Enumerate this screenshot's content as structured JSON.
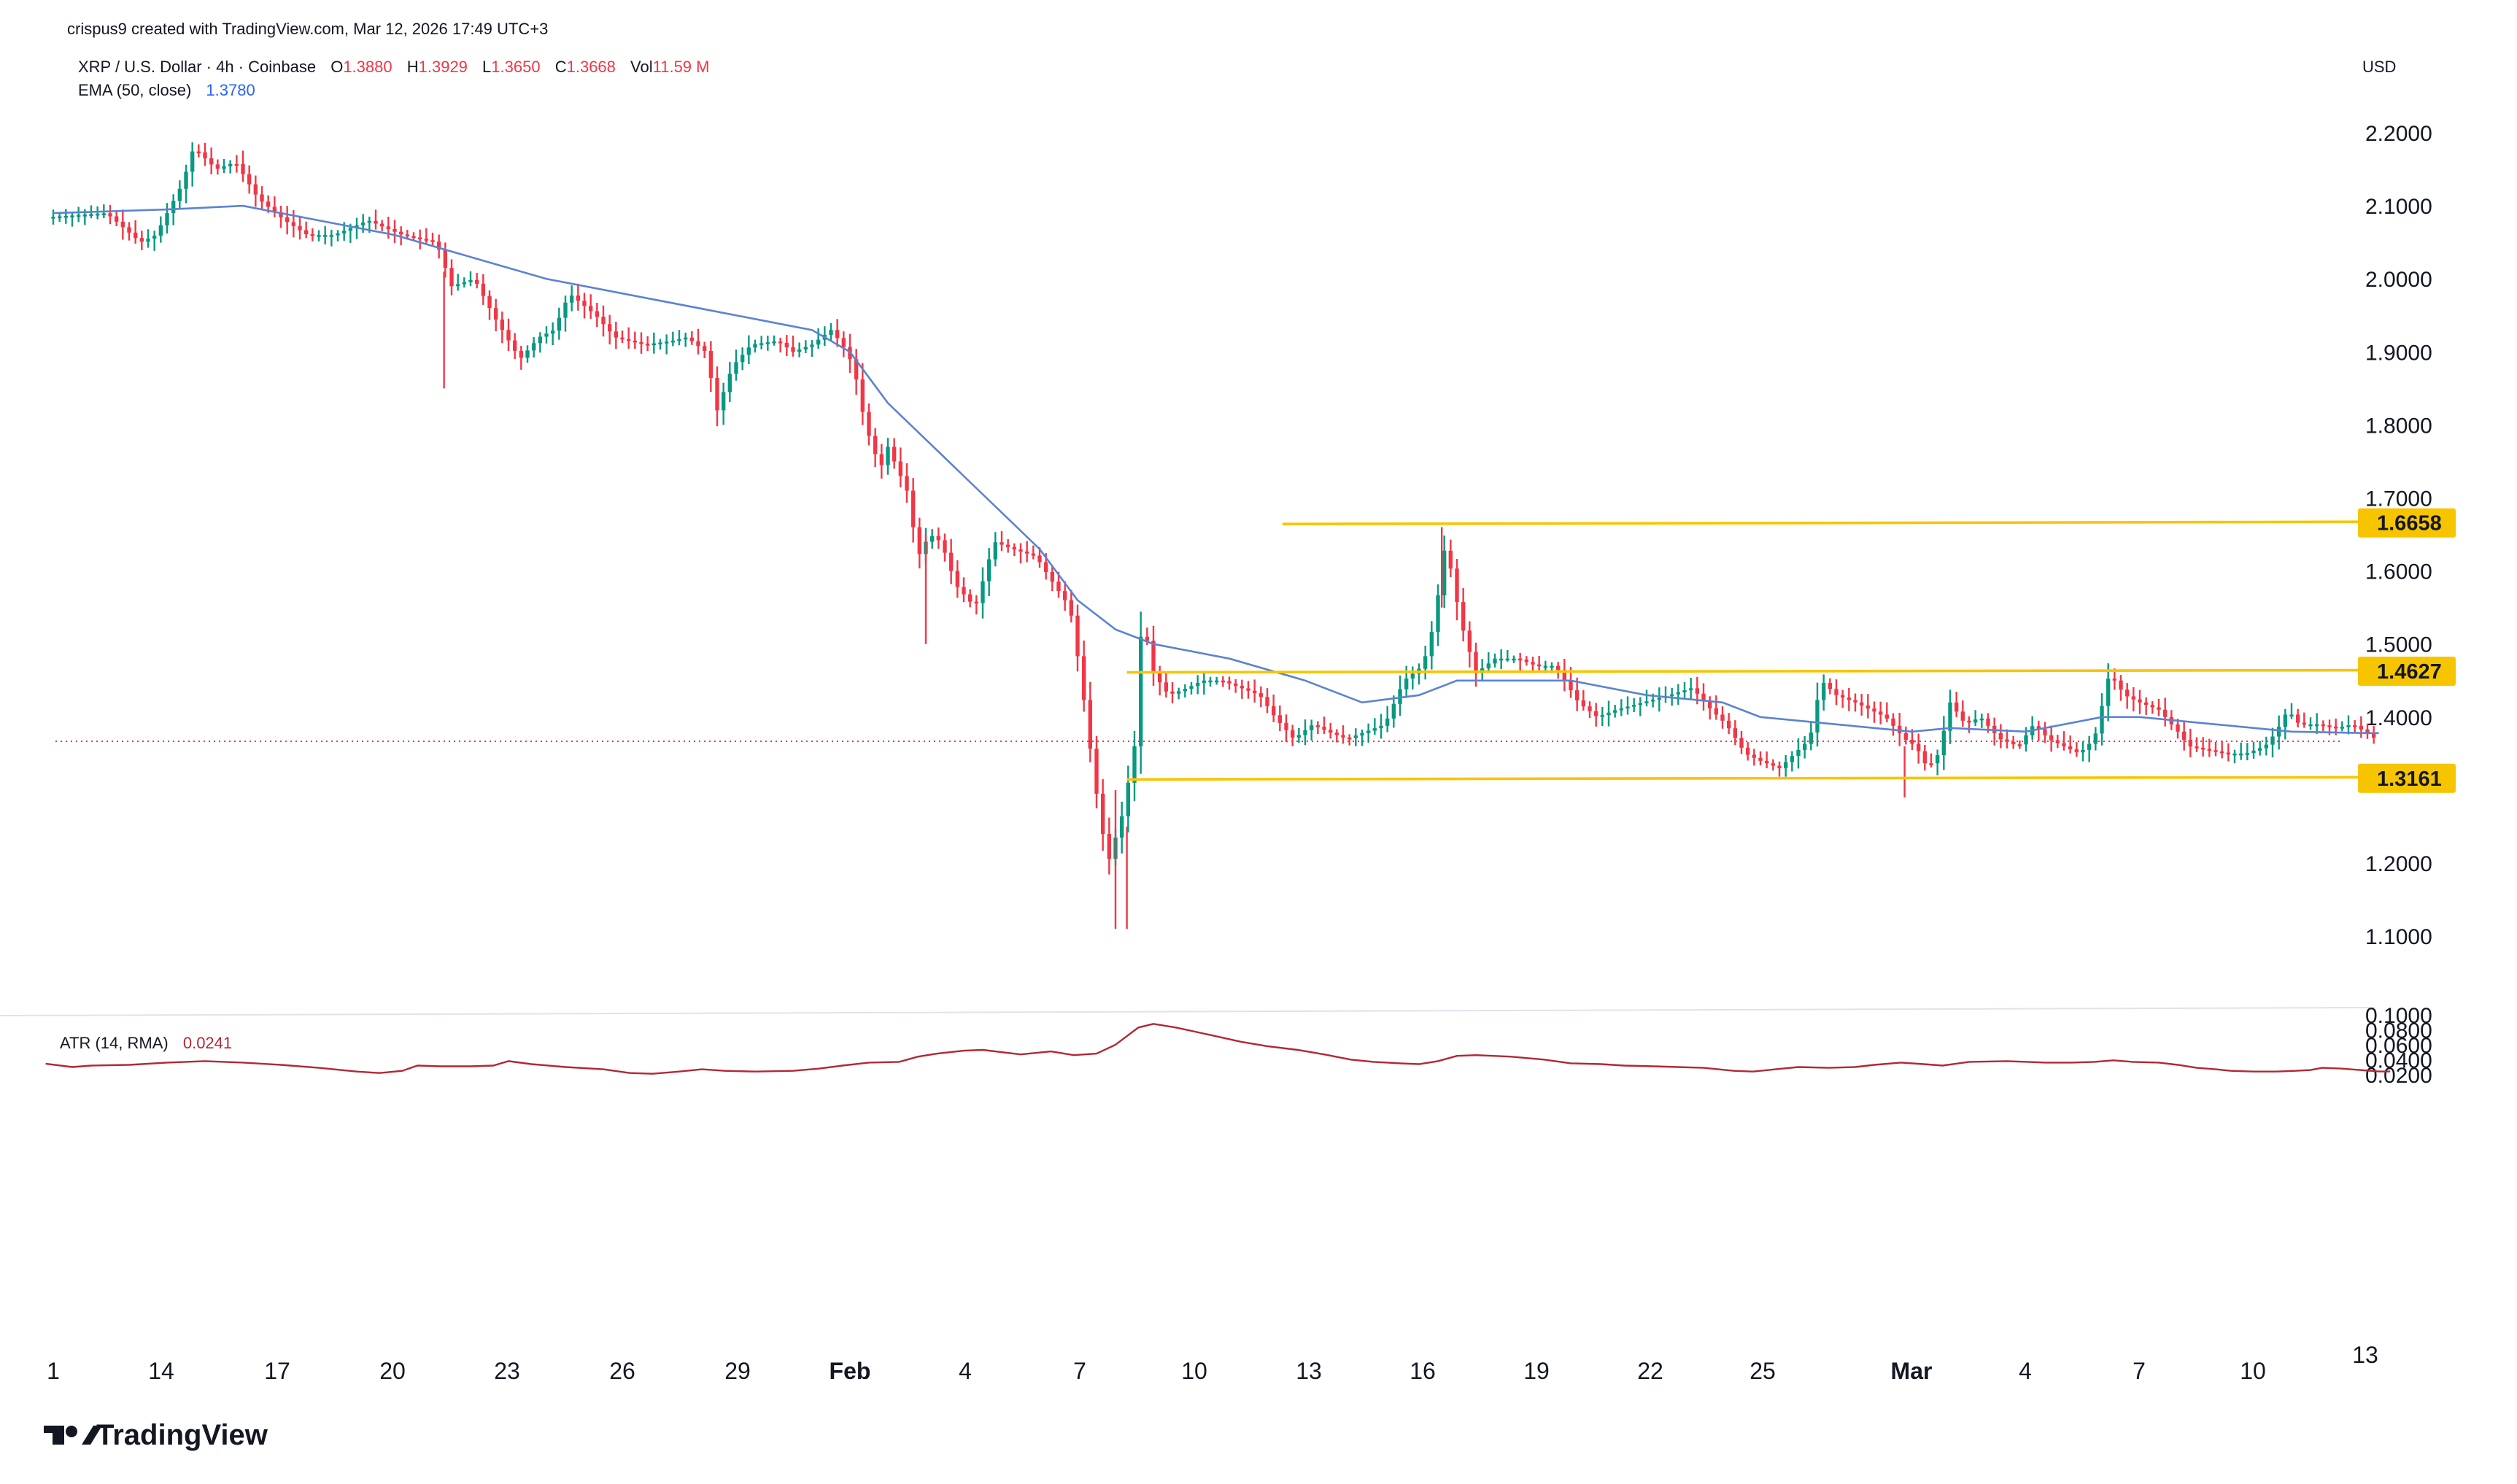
{
  "header": {
    "credit": "crispus9 created with TradingView.com, Mar 12, 2026 17:49 UTC+3",
    "symbol": "XRP / U.S. Dollar · 4h · Coinbase",
    "o_label": "O",
    "o_value": "1.3880",
    "h_label": "H",
    "h_value": "1.3929",
    "l_label": "L",
    "l_value": "1.3650",
    "c_label": "C",
    "c_value": "1.3668",
    "vol_label": "Vol",
    "vol_value": "11.59 M",
    "ema_label": "EMA (50, close)",
    "ema_value": "1.3780",
    "currency": "USD"
  },
  "atr_header": {
    "label": "ATR (14, RMA)",
    "value": "0.0241"
  },
  "logo_text": "TradingView",
  "colors": {
    "up": "#089981",
    "down": "#f23645",
    "ema": "#2962ff",
    "atr": "#b22833",
    "level": "#f7c500",
    "value_line": "#f23645",
    "ohlc_value": "#f23645",
    "ema_value": "#2962ff"
  },
  "chart_data": [
    {
      "type": "candlestick",
      "title": "XRP / U.S. Dollar · 4h · Coinbase",
      "ylabel": "USD",
      "ylim": [
        1.05,
        2.26
      ],
      "y_ticks": [
        "2.2000",
        "2.1000",
        "2.0000",
        "1.9000",
        "1.8000",
        "1.7000",
        "1.6000",
        "1.5000",
        "1.4000",
        "1.2000",
        "1.1000"
      ],
      "x_tick_labels": [
        "1",
        "14",
        "17",
        "20",
        "23",
        "26",
        "29",
        "Feb",
        "4",
        "7",
        "10",
        "13",
        "16",
        "19",
        "22",
        "25",
        "Mar",
        "4",
        "7",
        "10",
        "13"
      ],
      "x_range": [
        "Jan 11",
        "Mar 13"
      ],
      "path_points": [
        [
          0.0,
          2.085
        ],
        [
          1.4,
          2.09
        ],
        [
          2.3,
          2.05
        ],
        [
          2.7,
          2.06
        ],
        [
          3.4,
          2.13
        ],
        [
          3.7,
          2.18
        ],
        [
          4.3,
          2.15
        ],
        [
          4.8,
          2.16
        ],
        [
          5.4,
          2.11
        ],
        [
          6.1,
          2.08
        ],
        [
          6.7,
          2.06
        ],
        [
          7.4,
          2.06
        ],
        [
          8.3,
          2.08
        ],
        [
          9.2,
          2.06
        ],
        [
          10.1,
          2.05
        ],
        [
          10.5,
          1.99
        ],
        [
          11.1,
          2.0
        ],
        [
          11.6,
          1.95
        ],
        [
          12.3,
          1.89
        ],
        [
          12.8,
          1.92
        ],
        [
          13.2,
          1.93
        ],
        [
          13.6,
          1.98
        ],
        [
          14.3,
          1.95
        ],
        [
          14.8,
          1.92
        ],
        [
          15.6,
          1.91
        ],
        [
          16.3,
          1.915
        ],
        [
          16.7,
          1.92
        ],
        [
          17.2,
          1.9
        ],
        [
          17.5,
          1.82
        ],
        [
          17.9,
          1.88
        ],
        [
          18.4,
          1.91
        ],
        [
          19.1,
          1.915
        ],
        [
          19.5,
          1.9
        ],
        [
          20.0,
          1.91
        ],
        [
          20.5,
          1.93
        ],
        [
          20.8,
          1.91
        ],
        [
          21.1,
          1.88
        ],
        [
          21.4,
          1.8
        ],
        [
          21.8,
          1.74
        ],
        [
          22.0,
          1.77
        ],
        [
          22.5,
          1.71
        ],
        [
          22.8,
          1.62
        ],
        [
          23.1,
          1.65
        ],
        [
          23.4,
          1.64
        ],
        [
          23.8,
          1.58
        ],
        [
          24.3,
          1.55
        ],
        [
          24.8,
          1.64
        ],
        [
          25.3,
          1.63
        ],
        [
          25.9,
          1.62
        ],
        [
          26.4,
          1.58
        ],
        [
          26.8,
          1.55
        ],
        [
          27.1,
          1.45
        ],
        [
          27.4,
          1.33
        ],
        [
          27.6,
          1.26
        ],
        [
          27.8,
          1.2
        ],
        [
          28.2,
          1.27
        ],
        [
          28.5,
          1.36
        ],
        [
          28.7,
          1.54
        ],
        [
          29.0,
          1.46
        ],
        [
          29.4,
          1.43
        ],
        [
          29.9,
          1.44
        ],
        [
          30.3,
          1.45
        ],
        [
          30.8,
          1.45
        ],
        [
          31.3,
          1.44
        ],
        [
          31.8,
          1.43
        ],
        [
          32.2,
          1.4
        ],
        [
          32.7,
          1.37
        ],
        [
          33.2,
          1.39
        ],
        [
          33.6,
          1.38
        ],
        [
          34.1,
          1.37
        ],
        [
          34.6,
          1.38
        ],
        [
          35.1,
          1.39
        ],
        [
          35.6,
          1.45
        ],
        [
          36.1,
          1.47
        ],
        [
          36.4,
          1.53
        ],
        [
          36.7,
          1.64
        ],
        [
          37.1,
          1.53
        ],
        [
          37.5,
          1.46
        ],
        [
          38.0,
          1.48
        ],
        [
          38.6,
          1.48
        ],
        [
          39.1,
          1.47
        ],
        [
          39.6,
          1.47
        ],
        [
          40.2,
          1.42
        ],
        [
          40.7,
          1.4
        ],
        [
          41.2,
          1.41
        ],
        [
          41.9,
          1.42
        ],
        [
          42.6,
          1.43
        ],
        [
          43.2,
          1.44
        ],
        [
          43.7,
          1.41
        ],
        [
          44.1,
          1.39
        ],
        [
          44.6,
          1.35
        ],
        [
          45.0,
          1.34
        ],
        [
          45.5,
          1.33
        ],
        [
          45.9,
          1.35
        ],
        [
          46.3,
          1.37
        ],
        [
          46.6,
          1.45
        ],
        [
          47.0,
          1.43
        ],
        [
          47.5,
          1.42
        ],
        [
          47.9,
          1.41
        ],
        [
          48.3,
          1.4
        ],
        [
          48.8,
          1.37
        ],
        [
          49.1,
          1.36
        ],
        [
          49.4,
          1.33
        ],
        [
          49.7,
          1.35
        ],
        [
          50.0,
          1.42
        ],
        [
          50.4,
          1.39
        ],
        [
          50.8,
          1.4
        ],
        [
          51.3,
          1.37
        ],
        [
          51.8,
          1.36
        ],
        [
          52.2,
          1.39
        ],
        [
          52.6,
          1.37
        ],
        [
          53.0,
          1.36
        ],
        [
          53.4,
          1.35
        ],
        [
          53.8,
          1.37
        ],
        [
          54.2,
          1.46
        ],
        [
          54.6,
          1.43
        ],
        [
          55.0,
          1.42
        ],
        [
          55.5,
          1.41
        ],
        [
          56.0,
          1.38
        ],
        [
          56.3,
          1.36
        ],
        [
          56.8,
          1.355
        ],
        [
          57.3,
          1.35
        ],
        [
          57.8,
          1.35
        ],
        [
          58.3,
          1.36
        ],
        [
          58.6,
          1.38
        ],
        [
          58.9,
          1.41
        ],
        [
          59.2,
          1.39
        ],
        [
          59.7,
          1.39
        ],
        [
          60.2,
          1.385
        ],
        [
          60.6,
          1.39
        ],
        [
          61.0,
          1.378
        ],
        [
          61.3,
          1.3668
        ]
      ],
      "series": [
        {
          "name": "EMA (50, close)",
          "points": [
            [
              0.0,
              2.09
            ],
            [
              3.0,
              2.095
            ],
            [
              5.0,
              2.1
            ],
            [
              7.0,
              2.08
            ],
            [
              9.0,
              2.06
            ],
            [
              11.0,
              2.03
            ],
            [
              13.0,
              2.0
            ],
            [
              15.0,
              1.98
            ],
            [
              17.0,
              1.96
            ],
            [
              19.0,
              1.94
            ],
            [
              20.0,
              1.93
            ],
            [
              21.0,
              1.9
            ],
            [
              22.0,
              1.83
            ],
            [
              23.0,
              1.78
            ],
            [
              24.0,
              1.73
            ],
            [
              25.0,
              1.68
            ],
            [
              26.0,
              1.63
            ],
            [
              27.0,
              1.56
            ],
            [
              28.0,
              1.52
            ],
            [
              29.0,
              1.5
            ],
            [
              31.0,
              1.48
            ],
            [
              33.0,
              1.45
            ],
            [
              34.5,
              1.42
            ],
            [
              36.0,
              1.43
            ],
            [
              37.0,
              1.45
            ],
            [
              38.0,
              1.45
            ],
            [
              40.0,
              1.45
            ],
            [
              42.0,
              1.43
            ],
            [
              44.0,
              1.42
            ],
            [
              45.0,
              1.4
            ],
            [
              47.0,
              1.39
            ],
            [
              49.0,
              1.38
            ],
            [
              50.0,
              1.385
            ],
            [
              52.0,
              1.38
            ],
            [
              54.0,
              1.4
            ],
            [
              55.0,
              1.4
            ],
            [
              57.0,
              1.39
            ],
            [
              59.0,
              1.38
            ],
            [
              61.0,
              1.378
            ],
            [
              61.3,
              1.378
            ]
          ]
        }
      ],
      "levels": [
        {
          "label": "1.6658",
          "value": 1.6658,
          "from": 32.4
        },
        {
          "label": "1.4627",
          "value": 1.4627,
          "from": 28.3
        },
        {
          "label": "1.3161",
          "value": 1.3161,
          "from": 28.3
        }
      ],
      "last_price": 1.3668
    },
    {
      "type": "line",
      "title": "ATR (14, RMA)",
      "ylim": [
        0.015,
        0.1
      ],
      "y_ticks": [
        "0.1000",
        "0.0800",
        "0.0600",
        "0.0400",
        "0.0200"
      ],
      "series": [
        {
          "name": "ATR (14, RMA)",
          "points": [
            [
              -0.2,
              0.0345
            ],
            [
              0.5,
              0.03
            ],
            [
              1.0,
              0.032
            ],
            [
              2.0,
              0.033
            ],
            [
              3.0,
              0.036
            ],
            [
              4.0,
              0.038
            ],
            [
              5.0,
              0.036
            ],
            [
              6.0,
              0.033
            ],
            [
              7.0,
              0.029
            ],
            [
              8.0,
              0.024
            ],
            [
              8.6,
              0.022
            ],
            [
              9.2,
              0.025
            ],
            [
              9.6,
              0.032
            ],
            [
              10.2,
              0.031
            ],
            [
              11.0,
              0.031
            ],
            [
              11.6,
              0.032
            ],
            [
              12.0,
              0.038
            ],
            [
              12.6,
              0.034
            ],
            [
              13.5,
              0.03
            ],
            [
              14.5,
              0.027
            ],
            [
              15.2,
              0.022
            ],
            [
              15.8,
              0.021
            ],
            [
              16.5,
              0.024
            ],
            [
              17.1,
              0.027
            ],
            [
              17.7,
              0.025
            ],
            [
              18.5,
              0.024
            ],
            [
              19.5,
              0.025
            ],
            [
              20.2,
              0.028
            ],
            [
              20.8,
              0.032
            ],
            [
              21.5,
              0.036
            ],
            [
              22.3,
              0.037
            ],
            [
              22.8,
              0.044
            ],
            [
              23.3,
              0.048
            ],
            [
              24.0,
              0.052
            ],
            [
              24.5,
              0.053
            ],
            [
              25.5,
              0.047
            ],
            [
              26.3,
              0.051
            ],
            [
              26.9,
              0.046
            ],
            [
              27.5,
              0.048
            ],
            [
              28.0,
              0.06
            ],
            [
              28.6,
              0.083
            ],
            [
              29.0,
              0.088
            ],
            [
              29.6,
              0.083
            ],
            [
              30.5,
              0.073
            ],
            [
              31.3,
              0.064
            ],
            [
              32.0,
              0.058
            ],
            [
              32.8,
              0.053
            ],
            [
              33.5,
              0.047
            ],
            [
              34.2,
              0.04
            ],
            [
              34.8,
              0.037
            ],
            [
              35.5,
              0.035
            ],
            [
              36.0,
              0.034
            ],
            [
              36.5,
              0.038
            ],
            [
              37.0,
              0.045
            ],
            [
              37.5,
              0.046
            ],
            [
              38.4,
              0.044
            ],
            [
              39.3,
              0.04
            ],
            [
              40.0,
              0.035
            ],
            [
              40.8,
              0.034
            ],
            [
              41.4,
              0.032
            ],
            [
              42.2,
              0.031
            ],
            [
              42.8,
              0.03
            ],
            [
              43.5,
              0.029
            ],
            [
              44.3,
              0.025
            ],
            [
              44.8,
              0.024
            ],
            [
              45.4,
              0.027
            ],
            [
              46.0,
              0.03
            ],
            [
              46.8,
              0.029
            ],
            [
              47.5,
              0.03
            ],
            [
              48.0,
              0.033
            ],
            [
              48.7,
              0.036
            ],
            [
              49.3,
              0.034
            ],
            [
              49.8,
              0.032
            ],
            [
              50.5,
              0.037
            ],
            [
              51.5,
              0.038
            ],
            [
              52.5,
              0.036
            ],
            [
              53.2,
              0.036
            ],
            [
              53.8,
              0.037
            ],
            [
              54.3,
              0.039
            ],
            [
              54.8,
              0.037
            ],
            [
              55.5,
              0.036
            ],
            [
              56.0,
              0.033
            ],
            [
              56.5,
              0.029
            ],
            [
              57.0,
              0.027
            ],
            [
              57.4,
              0.025
            ],
            [
              58.0,
              0.024
            ],
            [
              58.6,
              0.024
            ],
            [
              59.1,
              0.025
            ],
            [
              59.5,
              0.026
            ],
            [
              59.8,
              0.029
            ],
            [
              60.3,
              0.028
            ],
            [
              60.8,
              0.026
            ],
            [
              61.3,
              0.0241
            ],
            [
              61.6,
              0.0241
            ]
          ]
        }
      ]
    }
  ]
}
